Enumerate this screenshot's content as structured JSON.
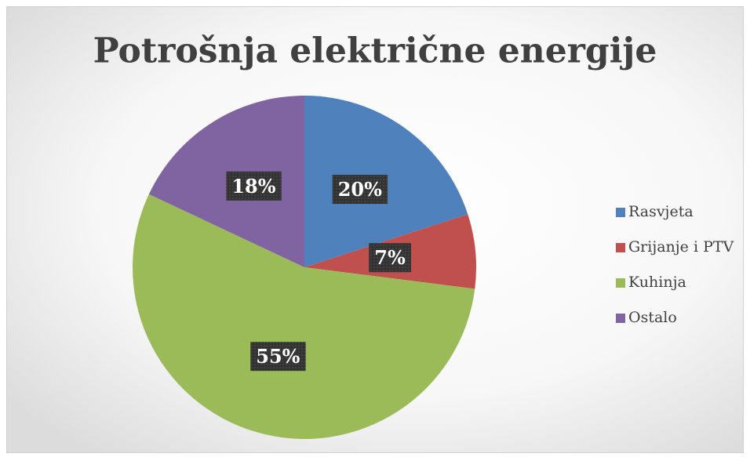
{
  "chart_data": {
    "type": "pie",
    "title": "Potrošnja električne energije",
    "categories": [
      "Rasvjeta",
      "Grijanje i PTV",
      "Kuhinja",
      "Ostalo"
    ],
    "values": [
      20,
      7,
      55,
      18
    ],
    "value_labels": [
      "20%",
      "7%",
      "55%",
      "18%"
    ],
    "colors": [
      "#4f81bd",
      "#c0504d",
      "#9bbb59",
      "#8064a2"
    ],
    "legend": "right"
  }
}
